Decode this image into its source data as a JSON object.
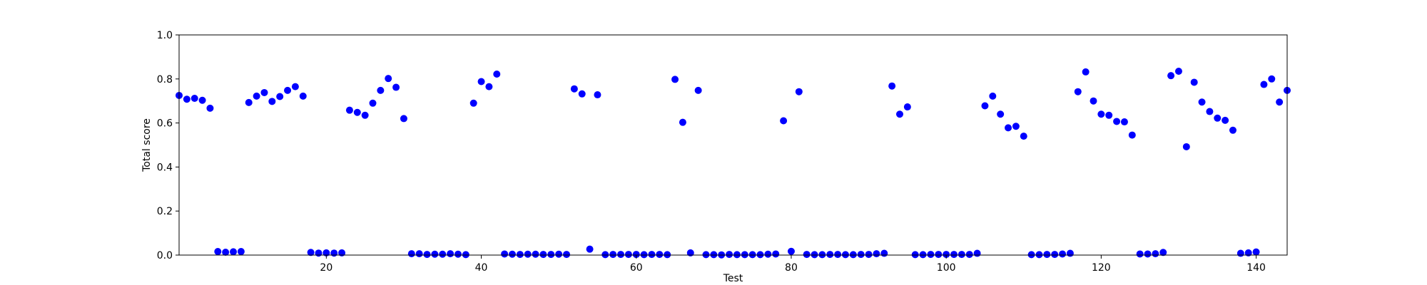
{
  "chart_data": {
    "type": "scatter",
    "xlabel": "Test",
    "ylabel": "Total score",
    "xlim": [
      1,
      144
    ],
    "ylim": [
      0,
      1
    ],
    "xticks": [
      20,
      40,
      60,
      80,
      100,
      120,
      140
    ],
    "yticks": [
      0.0,
      0.2,
      0.4,
      0.6,
      0.8,
      1.0
    ],
    "xtick_labels": [
      "20",
      "40",
      "60",
      "80",
      "100",
      "120",
      "140"
    ],
    "ytick_labels": [
      "0.0",
      "0.2",
      "0.4",
      "0.6",
      "0.8",
      "1.0"
    ],
    "grid": false,
    "marker_color": "#0000ff",
    "x": [
      1,
      2,
      3,
      4,
      5,
      6,
      7,
      8,
      9,
      10,
      11,
      12,
      13,
      14,
      15,
      16,
      17,
      18,
      19,
      20,
      21,
      22,
      23,
      24,
      25,
      26,
      27,
      28,
      29,
      30,
      31,
      32,
      33,
      34,
      35,
      36,
      37,
      38,
      39,
      40,
      41,
      42,
      43,
      44,
      45,
      46,
      47,
      48,
      49,
      50,
      51,
      52,
      53,
      54,
      55,
      56,
      57,
      58,
      59,
      60,
      61,
      62,
      63,
      64,
      65,
      66,
      67,
      68,
      69,
      70,
      71,
      72,
      73,
      74,
      75,
      76,
      77,
      78,
      79,
      80,
      81,
      82,
      83,
      84,
      85,
      86,
      87,
      88,
      89,
      90,
      91,
      92,
      93,
      94,
      95,
      96,
      97,
      98,
      99,
      100,
      101,
      102,
      103,
      104,
      105,
      106,
      107,
      108,
      109,
      110,
      111,
      112,
      113,
      114,
      115,
      116,
      117,
      118,
      119,
      120,
      121,
      122,
      123,
      124,
      125,
      126,
      127,
      128,
      129,
      130,
      131,
      132,
      133,
      134,
      135,
      136,
      137,
      138,
      139,
      140,
      141,
      142,
      143,
      144
    ],
    "y": [
      0.725,
      0.708,
      0.712,
      0.703,
      0.667,
      0.016,
      0.013,
      0.015,
      0.016,
      0.693,
      0.722,
      0.738,
      0.698,
      0.72,
      0.748,
      0.765,
      0.722,
      0.012,
      0.009,
      0.01,
      0.009,
      0.01,
      0.658,
      0.648,
      0.635,
      0.69,
      0.748,
      0.802,
      0.762,
      0.62,
      0.006,
      0.006,
      0.003,
      0.004,
      0.004,
      0.006,
      0.004,
      0.002,
      0.69,
      0.788,
      0.765,
      0.822,
      0.005,
      0.004,
      0.003,
      0.004,
      0.004,
      0.003,
      0.003,
      0.004,
      0.003,
      0.755,
      0.732,
      0.027,
      0.728,
      0.002,
      0.003,
      0.003,
      0.003,
      0.003,
      0.002,
      0.003,
      0.003,
      0.002,
      0.798,
      0.603,
      0.01,
      0.748,
      0.002,
      0.002,
      0.001,
      0.003,
      0.002,
      0.002,
      0.002,
      0.002,
      0.004,
      0.005,
      0.61,
      0.017,
      0.742,
      0.003,
      0.002,
      0.002,
      0.003,
      0.003,
      0.002,
      0.002,
      0.003,
      0.003,
      0.006,
      0.008,
      0.768,
      0.64,
      0.673,
      0.002,
      0.002,
      0.003,
      0.003,
      0.003,
      0.003,
      0.003,
      0.003,
      0.008,
      0.678,
      0.722,
      0.64,
      0.578,
      0.585,
      0.54,
      0.002,
      0.002,
      0.003,
      0.003,
      0.005,
      0.008,
      0.742,
      0.832,
      0.7,
      0.64,
      0.635,
      0.607,
      0.605,
      0.545,
      0.005,
      0.005,
      0.006,
      0.012,
      0.815,
      0.835,
      0.492,
      0.785,
      0.695,
      0.652,
      0.622,
      0.612,
      0.567,
      0.008,
      0.01,
      0.014,
      0.775,
      0.8,
      0.695,
      0.748
    ]
  }
}
